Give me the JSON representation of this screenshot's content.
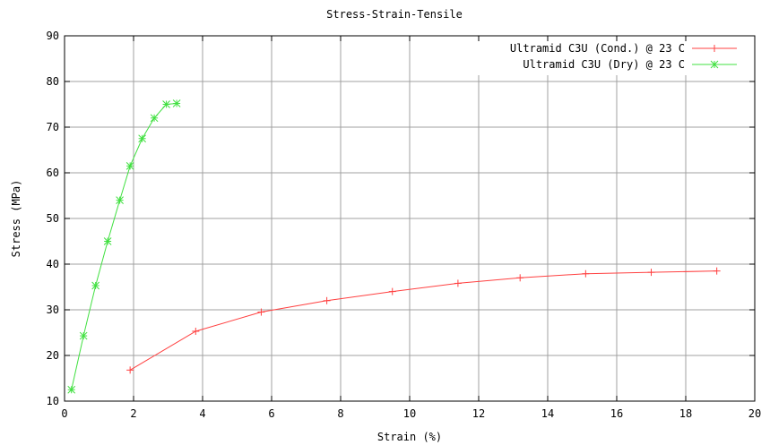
{
  "chart_data": {
    "type": "line",
    "title": "Stress-Strain-Tensile",
    "xlabel": "Strain (%)",
    "ylabel": "Stress (MPa)",
    "xlim": [
      0,
      20
    ],
    "ylim": [
      10,
      90
    ],
    "xticks": [
      0,
      2,
      4,
      6,
      8,
      10,
      12,
      14,
      16,
      18,
      20
    ],
    "yticks": [
      10,
      20,
      30,
      40,
      50,
      60,
      70,
      80,
      90
    ],
    "grid": true,
    "legend_position": "top-right",
    "series": [
      {
        "name": "Ultramid C3U (Cond.) @ 23 C",
        "color": "#ff4040",
        "marker": "plus",
        "x": [
          1.9,
          3.8,
          5.7,
          7.6,
          9.5,
          11.4,
          13.2,
          15.1,
          17.0,
          18.9
        ],
        "y": [
          16.8,
          25.3,
          29.5,
          32.0,
          34.0,
          35.8,
          37.0,
          37.9,
          38.2,
          38.5
        ]
      },
      {
        "name": "Ultramid C3U (Dry) @ 23 C",
        "color": "#40e040",
        "marker": "x",
        "x": [
          0.2,
          0.55,
          0.9,
          1.25,
          1.6,
          1.9,
          2.25,
          2.6,
          2.95,
          3.25
        ],
        "y": [
          12.5,
          24.3,
          35.3,
          45.0,
          54.0,
          61.5,
          67.5,
          72.0,
          75.0,
          75.2
        ]
      }
    ]
  }
}
